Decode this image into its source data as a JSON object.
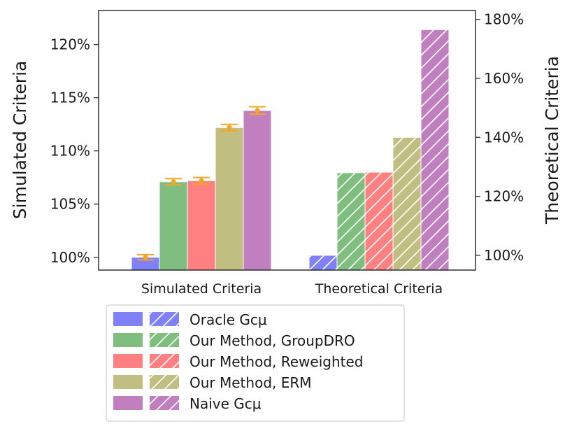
{
  "chart_data": {
    "type": "bar",
    "categories": [
      "Simulated Criteria",
      "Theoretical Criteria"
    ],
    "left_axis": {
      "label": "Simulated Criteria",
      "range": [
        98.8,
        123.2
      ],
      "ticks": [
        100,
        105,
        110,
        115,
        120
      ],
      "tick_labels": [
        "100%",
        "105%",
        "110%",
        "115%",
        "120%"
      ]
    },
    "right_axis": {
      "label": "Theoretical Criteria",
      "range": [
        95,
        183
      ],
      "ticks": [
        100,
        120,
        140,
        160,
        180
      ],
      "tick_labels": [
        "100%",
        "120%",
        "140%",
        "160%",
        "180%"
      ]
    },
    "series": [
      {
        "name": "Oracle Gcμ",
        "color": "#8080f8",
        "simulated": 100.0,
        "simulated_err": 0.25,
        "theoretical": 100.0
      },
      {
        "name": "Our Method, GroupDRO",
        "color": "#80be80",
        "simulated": 107.1,
        "simulated_err": 0.3,
        "theoretical": 128.0
      },
      {
        "name": "Our Method, Reweighted",
        "color": "#fe8080",
        "simulated": 107.2,
        "simulated_err": 0.3,
        "theoretical": 128.2
      },
      {
        "name": "Our Method, ERM",
        "color": "#c0be80",
        "simulated": 112.2,
        "simulated_err": 0.3,
        "theoretical": 140.0
      },
      {
        "name": "Naive Gcμ",
        "color": "#c080c0",
        "simulated": 113.8,
        "simulated_err": 0.35,
        "theoretical": 176.5
      }
    ],
    "error_bar_color": "#f5a623",
    "legend": {
      "placement": "bottom",
      "patterns": [
        "solid",
        "hatched"
      ]
    }
  }
}
